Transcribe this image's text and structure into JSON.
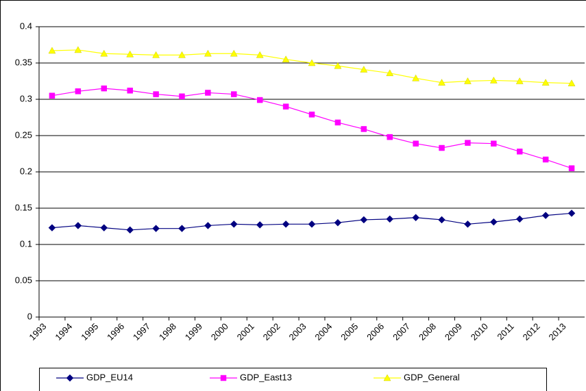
{
  "chart_data": {
    "type": "line",
    "categories": [
      "1993",
      "1994",
      "1995",
      "1996",
      "1997",
      "1998",
      "1999",
      "2000",
      "2001",
      "2002",
      "2003",
      "2004",
      "2005",
      "2006",
      "2007",
      "2008",
      "2009",
      "2010",
      "2011",
      "2012",
      "2013"
    ],
    "series": [
      {
        "name": "GDP_EU14",
        "color": "#000080",
        "marker": "diamond",
        "values": [
          0.123,
          0.126,
          0.123,
          0.12,
          0.122,
          0.122,
          0.126,
          0.128,
          0.127,
          0.128,
          0.128,
          0.13,
          0.134,
          0.135,
          0.137,
          0.134,
          0.128,
          0.131,
          0.135,
          0.14,
          0.143
        ]
      },
      {
        "name": "GDP_East13",
        "color": "#ff00ff",
        "marker": "square",
        "values": [
          0.305,
          0.311,
          0.315,
          0.312,
          0.307,
          0.304,
          0.309,
          0.307,
          0.299,
          0.29,
          0.279,
          0.268,
          0.259,
          0.248,
          0.239,
          0.233,
          0.24,
          0.239,
          0.228,
          0.217,
          0.205
        ]
      },
      {
        "name": "GDP_General",
        "color": "#ffff00",
        "marker": "triangle",
        "values": [
          0.367,
          0.368,
          0.363,
          0.362,
          0.361,
          0.361,
          0.363,
          0.363,
          0.361,
          0.355,
          0.35,
          0.346,
          0.341,
          0.336,
          0.329,
          0.323,
          0.325,
          0.326,
          0.325,
          0.323,
          0.322
        ]
      }
    ],
    "ylim": [
      0,
      0.4
    ],
    "yticks": [
      0,
      0.05,
      0.1,
      0.15,
      0.2,
      0.25,
      0.3,
      0.35,
      0.4
    ],
    "grid": true,
    "legend": "bottom"
  }
}
